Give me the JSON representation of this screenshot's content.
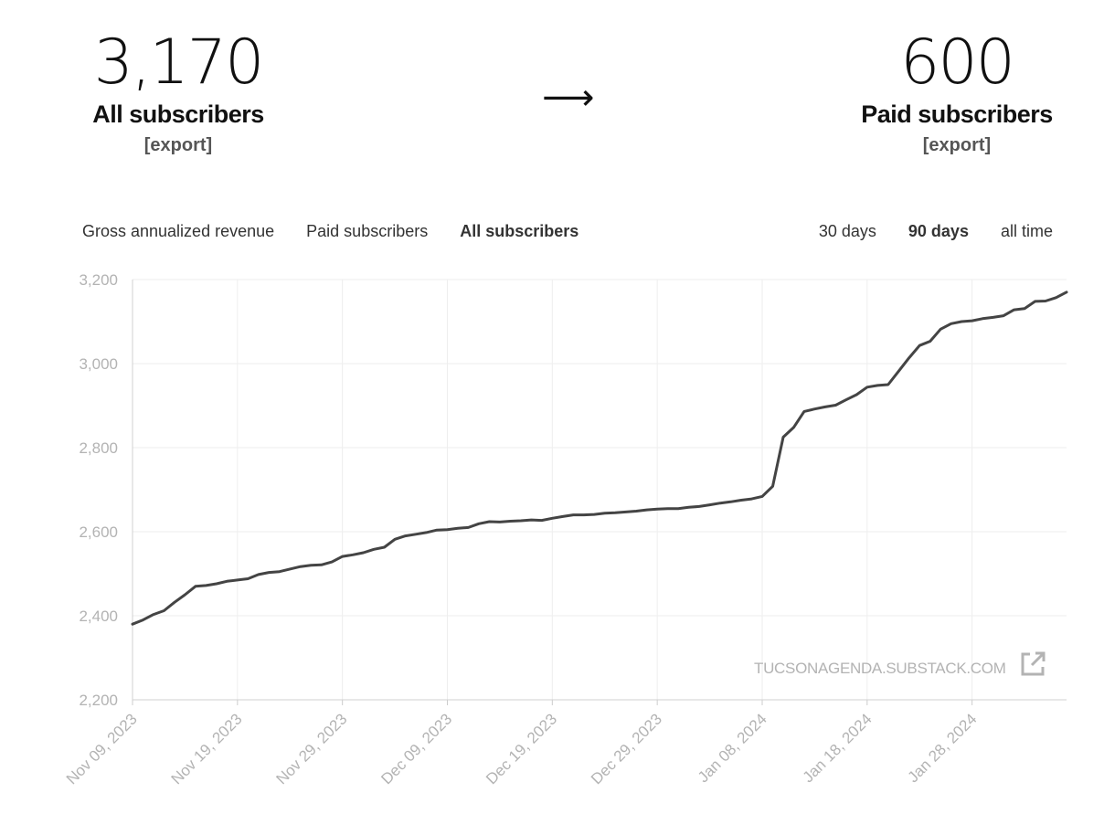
{
  "stats": {
    "all": {
      "value": "3,170",
      "label": "All subscribers",
      "export": "[export]"
    },
    "paid": {
      "value": "600",
      "label": "Paid subscribers",
      "export": "[export]"
    },
    "arrow": "⟶"
  },
  "metric_tabs": [
    {
      "label": "Gross annualized revenue",
      "active": false
    },
    {
      "label": "Paid subscribers",
      "active": false
    },
    {
      "label": "All subscribers",
      "active": true
    }
  ],
  "range_tabs": [
    {
      "label": "30 days",
      "active": false
    },
    {
      "label": "90 days",
      "active": true
    },
    {
      "label": "all time",
      "active": false
    }
  ],
  "watermark": "TUCSONAGENDA.SUBSTACK.COM",
  "colors": {
    "line": "#444444",
    "grid": "#eeeeee",
    "tick": "#b3b3b3"
  },
  "chart_data": {
    "type": "line",
    "title": "",
    "xlabel": "",
    "ylabel": "",
    "ylim": [
      2200,
      3200
    ],
    "yticks": [
      "3,200",
      "3,000",
      "2,800",
      "2,600",
      "2,400",
      "2,200"
    ],
    "ytick_values": [
      3200,
      3000,
      2800,
      2600,
      2400,
      2200
    ],
    "xticks": [
      "Nov 09, 2023",
      "Nov 19, 2023",
      "Nov 29, 2023",
      "Dec 09, 2023",
      "Dec 19, 2023",
      "Dec 29, 2023",
      "Jan 08, 2024",
      "Jan 18, 2024",
      "Jan 28, 2024"
    ],
    "xlim": [
      "Nov 09, 2023",
      "Feb 06, 2024"
    ],
    "grid": true,
    "series": [
      {
        "x": [
          "2023-11-09",
          "2023-11-10",
          "2023-11-11",
          "2023-11-12",
          "2023-11-13",
          "2023-11-14",
          "2023-11-15",
          "2023-11-16",
          "2023-11-17",
          "2023-11-18",
          "2023-11-19",
          "2023-11-20",
          "2023-11-21",
          "2023-11-22",
          "2023-11-23",
          "2023-11-24",
          "2023-11-25",
          "2023-11-26",
          "2023-11-27",
          "2023-11-28",
          "2023-11-29",
          "2023-11-30",
          "2023-12-01",
          "2023-12-02",
          "2023-12-03",
          "2023-12-04",
          "2023-12-05",
          "2023-12-06",
          "2023-12-07",
          "2023-12-08",
          "2023-12-09",
          "2023-12-10",
          "2023-12-11",
          "2023-12-12",
          "2023-12-13",
          "2023-12-14",
          "2023-12-15",
          "2023-12-16",
          "2023-12-17",
          "2023-12-18",
          "2023-12-19",
          "2023-12-20",
          "2023-12-21",
          "2023-12-22",
          "2023-12-23",
          "2023-12-24",
          "2023-12-25",
          "2023-12-26",
          "2023-12-27",
          "2023-12-28",
          "2023-12-29",
          "2023-12-30",
          "2023-12-31",
          "2024-01-01",
          "2024-01-02",
          "2024-01-03",
          "2024-01-04",
          "2024-01-05",
          "2024-01-06",
          "2024-01-07",
          "2024-01-08",
          "2024-01-09",
          "2024-01-10",
          "2024-01-11",
          "2024-01-12",
          "2024-01-13",
          "2024-01-14",
          "2024-01-15",
          "2024-01-16",
          "2024-01-17",
          "2024-01-18",
          "2024-01-19",
          "2024-01-20",
          "2024-01-21",
          "2024-01-22",
          "2024-01-23",
          "2024-01-24",
          "2024-01-25",
          "2024-01-26",
          "2024-01-27",
          "2024-01-28",
          "2024-01-29",
          "2024-01-30",
          "2024-01-31",
          "2024-02-01",
          "2024-02-02",
          "2024-02-03",
          "2024-02-04",
          "2024-02-05",
          "2024-02-06"
        ],
        "y": [
          2380,
          2390,
          2403,
          2412,
          2432,
          2450,
          2470,
          2472,
          2476,
          2482,
          2485,
          2488,
          2498,
          2503,
          2505,
          2511,
          2517,
          2520,
          2521,
          2528,
          2541,
          2545,
          2550,
          2558,
          2563,
          2582,
          2590,
          2594,
          2598,
          2604,
          2605,
          2608,
          2610,
          2619,
          2624,
          2623,
          2625,
          2626,
          2628,
          2627,
          2632,
          2636,
          2640,
          2640,
          2641,
          2644,
          2645,
          2647,
          2649,
          2652,
          2654,
          2655,
          2655,
          2658,
          2660,
          2664,
          2668,
          2671,
          2675,
          2678,
          2684,
          2708,
          2825,
          2848,
          2886,
          2892,
          2897,
          2901,
          2914,
          2926,
          2944,
          2948,
          2950,
          2982,
          3014,
          3043,
          3053,
          3082,
          3095,
          3100,
          3102,
          3107,
          3110,
          3114,
          3128,
          3131,
          3148,
          3149,
          3157,
          3170
        ]
      }
    ]
  }
}
